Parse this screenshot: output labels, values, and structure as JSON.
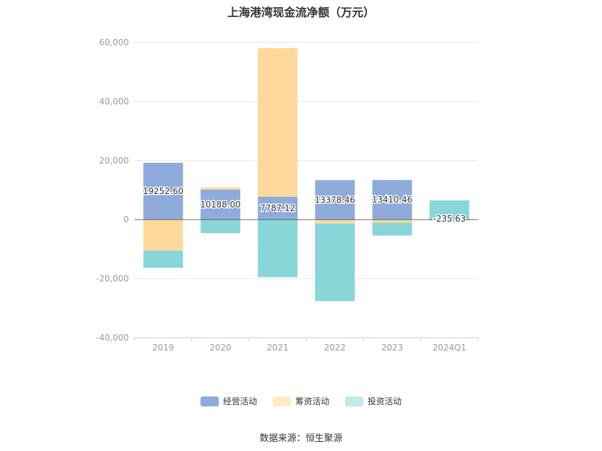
{
  "chart_data": {
    "type": "bar",
    "stacked": true,
    "title": "上海港湾现金流净额（万元）",
    "categories": [
      "2019",
      "2020",
      "2021",
      "2022",
      "2023",
      "2024Q1"
    ],
    "ylim": [
      -40000,
      60000
    ],
    "yticks": [
      60000,
      40000,
      20000,
      0,
      -20000,
      -40000
    ],
    "ytick_labels": [
      "60,000",
      "40,000",
      "20,000",
      "0",
      "-20,000",
      "-40,000"
    ],
    "grid": true,
    "legend_position": "bottom",
    "series": [
      {
        "name": "经营活动",
        "color": "#8eabdb",
        "values": [
          19252.6,
          10188.0,
          7787.12,
          13378.46,
          13410.46,
          -235.63
        ],
        "labels": [
          "19252.60",
          "10188.00",
          "7787.12",
          "13378.46",
          "13410.46",
          "-235.63"
        ]
      },
      {
        "name": "筹资活动",
        "color": "#ffd99b",
        "values": [
          -10500,
          700,
          50300,
          -1300,
          -1000,
          0
        ]
      },
      {
        "name": "投资活动",
        "color": "#88d6d8",
        "values": [
          -5800,
          -4600,
          -19500,
          -26300,
          -4400,
          6500
        ]
      }
    ]
  },
  "legend": [
    {
      "label": "经营活动",
      "color": "#8eabdb"
    },
    {
      "label": "筹资活动",
      "color": "#ffeac4"
    },
    {
      "label": "投资活动",
      "color": "#bfe9ea"
    }
  ],
  "source": "数据来源：恒生聚源"
}
